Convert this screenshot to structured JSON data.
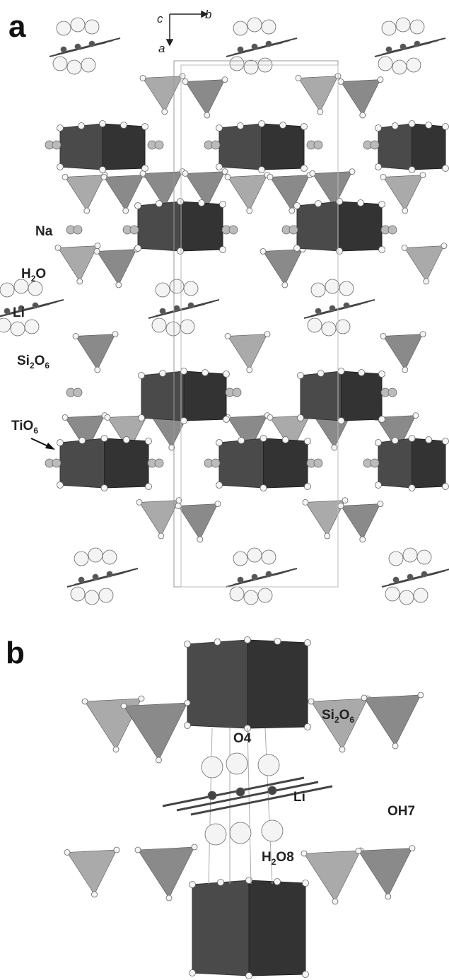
{
  "panel_a": {
    "label": "a",
    "axes": {
      "c": "c",
      "b": "b",
      "a": "a"
    },
    "labels": {
      "na": "Na",
      "h2o": [
        "H",
        "2",
        "O"
      ],
      "li": "Li",
      "si2o6": [
        "Si",
        "2",
        "O",
        "6"
      ],
      "tio6": [
        "TiO",
        "6"
      ]
    }
  },
  "panel_b": {
    "label": "b",
    "labels": {
      "si2o6": [
        "Si",
        "2",
        "O",
        "6"
      ],
      "o4": "O4",
      "li": "Li",
      "oh7": "OH7",
      "h2o8": [
        "H",
        "2",
        "O8"
      ]
    }
  }
}
